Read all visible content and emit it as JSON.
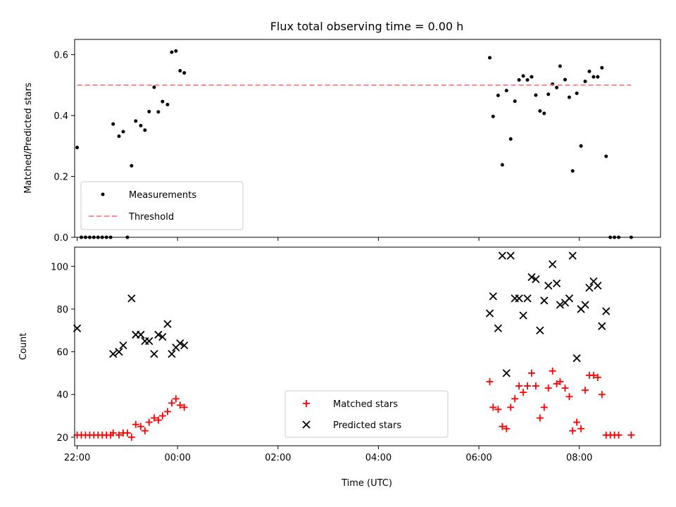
{
  "chart_data": [
    {
      "type": "scatter",
      "title": "Flux total observing time = 0.00 h",
      "xlabel": "",
      "ylabel": "Matched/Predicted stars",
      "xlim": [
        "21:57",
        "09:37"
      ],
      "ylim": [
        0,
        0.65
      ],
      "yticks": [
        "0.0",
        "0.2",
        "0.4",
        "0.6"
      ],
      "xticks": [
        "22:00",
        "00:00",
        "02:00",
        "04:00",
        "06:00",
        "08:00"
      ],
      "legend_position": "lower-left",
      "series": [
        {
          "name": "Measurements",
          "marker": "dot",
          "color": "#000000",
          "points": [
            [
              "22:00",
              0.295
            ],
            [
              "22:05",
              0.0
            ],
            [
              "22:10",
              0.0
            ],
            [
              "22:15",
              0.0
            ],
            [
              "22:20",
              0.0
            ],
            [
              "22:25",
              0.0
            ],
            [
              "22:30",
              0.0
            ],
            [
              "22:35",
              0.0
            ],
            [
              "22:40",
              0.0
            ],
            [
              "22:43",
              0.372
            ],
            [
              "22:50",
              0.332
            ],
            [
              "22:55",
              0.347
            ],
            [
              "23:00",
              0.0
            ],
            [
              "23:05",
              0.235
            ],
            [
              "23:10",
              0.382
            ],
            [
              "23:16",
              0.367
            ],
            [
              "23:21",
              0.352
            ],
            [
              "23:26",
              0.413
            ],
            [
              "23:32",
              0.493
            ],
            [
              "23:37",
              0.412
            ],
            [
              "23:42",
              0.446
            ],
            [
              "23:48",
              0.436
            ],
            [
              "23:53",
              0.608
            ],
            [
              "23:58",
              0.612
            ],
            [
              "00:03",
              0.547
            ],
            [
              "00:08",
              0.54
            ],
            [
              "06:13",
              0.59
            ],
            [
              "06:17",
              0.397
            ],
            [
              "06:23",
              0.466
            ],
            [
              "06:28",
              0.238
            ],
            [
              "06:33",
              0.482
            ],
            [
              "06:38",
              0.323
            ],
            [
              "06:43",
              0.447
            ],
            [
              "06:48",
              0.517
            ],
            [
              "06:53",
              0.53
            ],
            [
              "06:58",
              0.517
            ],
            [
              "07:03",
              0.527
            ],
            [
              "07:08",
              0.467
            ],
            [
              "07:13",
              0.415
            ],
            [
              "07:18",
              0.407
            ],
            [
              "07:23",
              0.47
            ],
            [
              "07:28",
              0.503
            ],
            [
              "07:33",
              0.492
            ],
            [
              "07:37",
              0.562
            ],
            [
              "07:43",
              0.518
            ],
            [
              "07:48",
              0.46
            ],
            [
              "07:52",
              0.218
            ],
            [
              "07:57",
              0.473
            ],
            [
              "08:02",
              0.3
            ],
            [
              "08:07",
              0.512
            ],
            [
              "08:12",
              0.545
            ],
            [
              "08:17",
              0.527
            ],
            [
              "08:22",
              0.527
            ],
            [
              "08:27",
              0.557
            ],
            [
              "08:32",
              0.266
            ],
            [
              "08:37",
              0.0
            ],
            [
              "08:42",
              0.0
            ],
            [
              "08:47",
              0.0
            ],
            [
              "09:02",
              0.0
            ]
          ]
        },
        {
          "name": "Threshold",
          "type": "line",
          "style": "dashed",
          "color": "#ff7a7a",
          "points": [
            [
              "22:00",
              0.5
            ],
            [
              "09:02",
              0.5
            ]
          ]
        }
      ]
    },
    {
      "type": "scatter",
      "title": "",
      "xlabel": "Time (UTC)",
      "ylabel": "Count",
      "xlim": [
        "21:57",
        "09:37"
      ],
      "ylim": [
        16,
        109
      ],
      "yticks": [
        "20",
        "40",
        "60",
        "80",
        "100"
      ],
      "xticks": [
        "22:00",
        "00:00",
        "02:00",
        "04:00",
        "06:00",
        "08:00"
      ],
      "legend_position": "lower-center",
      "series": [
        {
          "name": "Matched stars",
          "marker": "plus",
          "color": "#ff0000",
          "points": [
            [
              "22:00",
              21
            ],
            [
              "22:05",
              21
            ],
            [
              "22:10",
              21
            ],
            [
              "22:15",
              21
            ],
            [
              "22:20",
              21
            ],
            [
              "22:25",
              21
            ],
            [
              "22:30",
              21
            ],
            [
              "22:35",
              21
            ],
            [
              "22:40",
              21
            ],
            [
              "22:43",
              22
            ],
            [
              "22:50",
              21
            ],
            [
              "22:55",
              22
            ],
            [
              "23:00",
              22
            ],
            [
              "23:05",
              20
            ],
            [
              "23:10",
              26
            ],
            [
              "23:16",
              25
            ],
            [
              "23:21",
              23
            ],
            [
              "23:26",
              27
            ],
            [
              "23:32",
              29
            ],
            [
              "23:37",
              28
            ],
            [
              "23:42",
              30
            ],
            [
              "23:48",
              32
            ],
            [
              "23:53",
              36
            ],
            [
              "23:58",
              38
            ],
            [
              "00:03",
              35
            ],
            [
              "00:08",
              34
            ],
            [
              "06:13",
              46
            ],
            [
              "06:17",
              34
            ],
            [
              "06:23",
              33
            ],
            [
              "06:28",
              25
            ],
            [
              "06:33",
              24
            ],
            [
              "06:38",
              34
            ],
            [
              "06:43",
              38
            ],
            [
              "06:48",
              44
            ],
            [
              "06:53",
              41
            ],
            [
              "06:58",
              44
            ],
            [
              "07:03",
              50
            ],
            [
              "07:08",
              44
            ],
            [
              "07:13",
              29
            ],
            [
              "07:18",
              34
            ],
            [
              "07:23",
              43
            ],
            [
              "07:28",
              51
            ],
            [
              "07:33",
              45
            ],
            [
              "07:37",
              46
            ],
            [
              "07:43",
              43
            ],
            [
              "07:48",
              39
            ],
            [
              "07:52",
              23
            ],
            [
              "07:57",
              27
            ],
            [
              "08:02",
              24
            ],
            [
              "08:07",
              42
            ],
            [
              "08:12",
              49
            ],
            [
              "08:17",
              49
            ],
            [
              "08:22",
              48
            ],
            [
              "08:27",
              40
            ],
            [
              "08:32",
              21
            ],
            [
              "08:37",
              21
            ],
            [
              "08:42",
              21
            ],
            [
              "08:47",
              21
            ],
            [
              "09:02",
              21
            ]
          ]
        },
        {
          "name": "Predicted stars",
          "marker": "x",
          "color": "#000000",
          "points": [
            [
              "22:00",
              71
            ],
            [
              "22:43",
              59
            ],
            [
              "22:50",
              60
            ],
            [
              "22:55",
              63
            ],
            [
              "23:05",
              85
            ],
            [
              "23:10",
              68
            ],
            [
              "23:16",
              68
            ],
            [
              "23:21",
              65
            ],
            [
              "23:26",
              65
            ],
            [
              "23:32",
              59
            ],
            [
              "23:37",
              68
            ],
            [
              "23:42",
              67
            ],
            [
              "23:48",
              73
            ],
            [
              "23:53",
              59
            ],
            [
              "23:58",
              62
            ],
            [
              "00:03",
              64
            ],
            [
              "00:08",
              63
            ],
            [
              "06:13",
              78
            ],
            [
              "06:17",
              86
            ],
            [
              "06:23",
              71
            ],
            [
              "06:28",
              105
            ],
            [
              "06:33",
              50
            ],
            [
              "06:38",
              105
            ],
            [
              "06:43",
              85
            ],
            [
              "06:48",
              85
            ],
            [
              "06:53",
              77
            ],
            [
              "06:58",
              85
            ],
            [
              "07:03",
              95
            ],
            [
              "07:08",
              94
            ],
            [
              "07:13",
              70
            ],
            [
              "07:18",
              84
            ],
            [
              "07:23",
              91
            ],
            [
              "07:28",
              101
            ],
            [
              "07:33",
              92
            ],
            [
              "07:37",
              82
            ],
            [
              "07:43",
              83
            ],
            [
              "07:48",
              85
            ],
            [
              "07:52",
              105
            ],
            [
              "07:57",
              57
            ],
            [
              "08:02",
              80
            ],
            [
              "08:07",
              82
            ],
            [
              "08:12",
              90
            ],
            [
              "08:17",
              93
            ],
            [
              "08:22",
              91
            ],
            [
              "08:27",
              72
            ],
            [
              "08:32",
              79
            ]
          ]
        }
      ]
    }
  ]
}
